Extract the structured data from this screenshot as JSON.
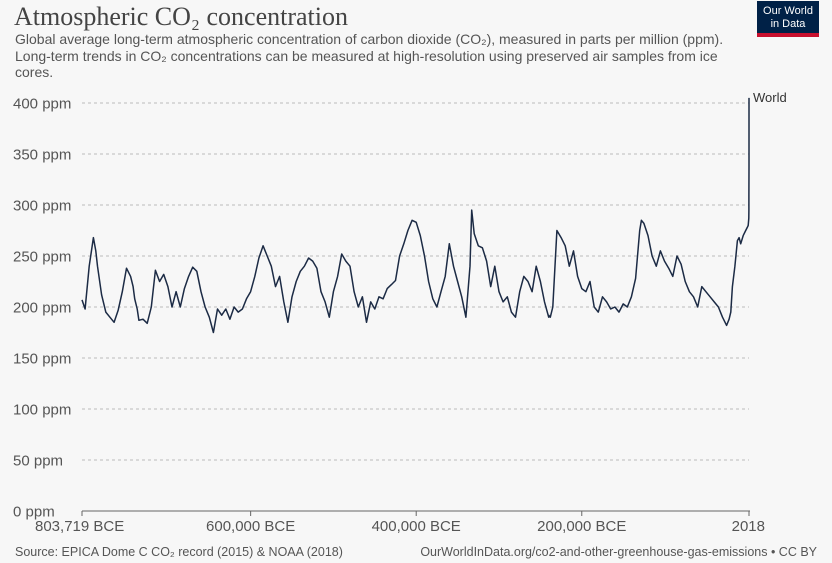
{
  "header": {
    "title": "Atmospheric CO₂ concentration",
    "subtitle": "Global average long-term atmospheric concentration of carbon dioxide (CO₂), measured in parts per million (ppm). Long-term trends in CO₂ concentrations can be measured at high-resolution using preserved air samples from ice cores.",
    "logo_line1": "Our World",
    "logo_line2": "in Data"
  },
  "footer": {
    "source": "Source: EPICA Dome C CO₂ record (2015) & NOAA (2018)",
    "credit": "OurWorldInData.org/co2-and-other-greenhouse-gas-emissions • CC BY"
  },
  "colors": {
    "series": "#1c2b45",
    "logo_bg": "#002147",
    "logo_accent": "#c8102e"
  },
  "chart_data": {
    "type": "line",
    "title": "Atmospheric CO₂ concentration",
    "ylim": [
      0,
      400
    ],
    "y_ticks": [
      0,
      50,
      100,
      150,
      200,
      250,
      300,
      350,
      400
    ],
    "y_tick_labels": [
      "0 ppm",
      "50 ppm",
      "100 ppm",
      "150 ppm",
      "200 ppm",
      "250 ppm",
      "300 ppm",
      "350 ppm",
      "400 ppm"
    ],
    "xlim": [
      -803719,
      2018
    ],
    "x_ticks": [
      -803719,
      -600000,
      -400000,
      -200000,
      2018
    ],
    "x_tick_labels": [
      "803,719 BCE",
      "600,000 BCE",
      "400,000 BCE",
      "200,000 BCE",
      "2018"
    ],
    "grid": true,
    "series": [
      {
        "name": "World",
        "x": [
          -803719,
          -800000,
          -795000,
          -790000,
          -787000,
          -785000,
          -780000,
          -775000,
          -770000,
          -765000,
          -760000,
          -755000,
          -750000,
          -745000,
          -742000,
          -740000,
          -737000,
          -735000,
          -730000,
          -725000,
          -720000,
          -715000,
          -710000,
          -705000,
          -700000,
          -695000,
          -690000,
          -685000,
          -680000,
          -675000,
          -670000,
          -665000,
          -660000,
          -655000,
          -650000,
          -645000,
          -640000,
          -635000,
          -630000,
          -625000,
          -620000,
          -615000,
          -610000,
          -605000,
          -600000,
          -595000,
          -590000,
          -585000,
          -580000,
          -575000,
          -570000,
          -565000,
          -560000,
          -555000,
          -550000,
          -545000,
          -540000,
          -535000,
          -530000,
          -525000,
          -520000,
          -515000,
          -510000,
          -505000,
          -500000,
          -495000,
          -490000,
          -485000,
          -480000,
          -475000,
          -470000,
          -465000,
          -460000,
          -455000,
          -450000,
          -445000,
          -440000,
          -435000,
          -430000,
          -425000,
          -420000,
          -415000,
          -410000,
          -405000,
          -400000,
          -395000,
          -390000,
          -385000,
          -380000,
          -375000,
          -370000,
          -365000,
          -360000,
          -355000,
          -350000,
          -345000,
          -340000,
          -335000,
          -333000,
          -330000,
          -325000,
          -320000,
          -315000,
          -310000,
          -305000,
          -300000,
          -295000,
          -290000,
          -285000,
          -280000,
          -275000,
          -270000,
          -265000,
          -260000,
          -255000,
          -250000,
          -245000,
          -240000,
          -240000,
          -238000,
          -235000,
          -230000,
          -225000,
          -220000,
          -215000,
          -210000,
          -205000,
          -200000,
          -195000,
          -190000,
          -185000,
          -180000,
          -175000,
          -170000,
          -165000,
          -160000,
          -155000,
          -150000,
          -145000,
          -140000,
          -135000,
          -130000,
          -128000,
          -125000,
          -120000,
          -115000,
          -110000,
          -105000,
          -100000,
          -95000,
          -90000,
          -85000,
          -80000,
          -75000,
          -70000,
          -65000,
          -60000,
          -55000,
          -50000,
          -45000,
          -40000,
          -35000,
          -30000,
          -25000,
          -22000,
          -20000,
          -18000,
          -15000,
          -12000,
          -10000,
          -8000,
          -5000,
          -2000,
          0,
          1000,
          1800,
          1900,
          1950,
          1980,
          2000,
          2018
        ],
        "y": [
          207,
          198,
          240,
          268,
          255,
          240,
          212,
          195,
          190,
          185,
          197,
          215,
          238,
          230,
          220,
          208,
          198,
          187,
          188,
          184,
          200,
          236,
          225,
          232,
          220,
          200,
          215,
          200,
          218,
          230,
          239,
          235,
          215,
          200,
          190,
          175,
          198,
          192,
          198,
          188,
          200,
          195,
          198,
          208,
          215,
          230,
          248,
          260,
          250,
          240,
          220,
          230,
          205,
          185,
          210,
          225,
          235,
          240,
          248,
          245,
          238,
          215,
          205,
          190,
          215,
          230,
          252,
          245,
          240,
          215,
          200,
          210,
          185,
          205,
          198,
          210,
          208,
          218,
          222,
          226,
          250,
          262,
          275,
          285,
          283,
          270,
          250,
          225,
          208,
          200,
          215,
          230,
          262,
          240,
          225,
          210,
          190,
          240,
          295,
          272,
          260,
          258,
          245,
          220,
          240,
          215,
          205,
          210,
          195,
          190,
          215,
          230,
          225,
          215,
          240,
          225,
          205,
          190,
          192,
          190,
          200,
          275,
          268,
          260,
          240,
          255,
          230,
          218,
          215,
          225,
          200,
          195,
          210,
          205,
          198,
          200,
          195,
          203,
          200,
          210,
          228,
          275,
          285,
          282,
          270,
          250,
          240,
          255,
          245,
          238,
          230,
          250,
          242,
          225,
          215,
          210,
          200,
          220,
          215,
          210,
          205,
          200,
          190,
          182,
          188,
          195,
          220,
          240,
          265,
          268,
          262,
          270,
          275,
          278,
          280,
          287,
          295,
          310,
          338,
          370,
          405
        ]
      }
    ]
  }
}
